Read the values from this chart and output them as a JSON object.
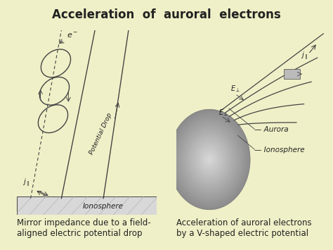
{
  "title": "Acceleration  of  auroral  electrons",
  "title_fontsize": 12,
  "title_fontweight": "bold",
  "background_color": "#f0f0c8",
  "panel_bg": "#ffffff",
  "caption_left": "Mirror impedance due to a field-\naligned electric potential drop",
  "caption_right": "Acceleration of auroral electrons\nby a V-shaped electric potential",
  "caption_fontsize": 8.5,
  "text_color": "#222222",
  "line_color": "#444444"
}
